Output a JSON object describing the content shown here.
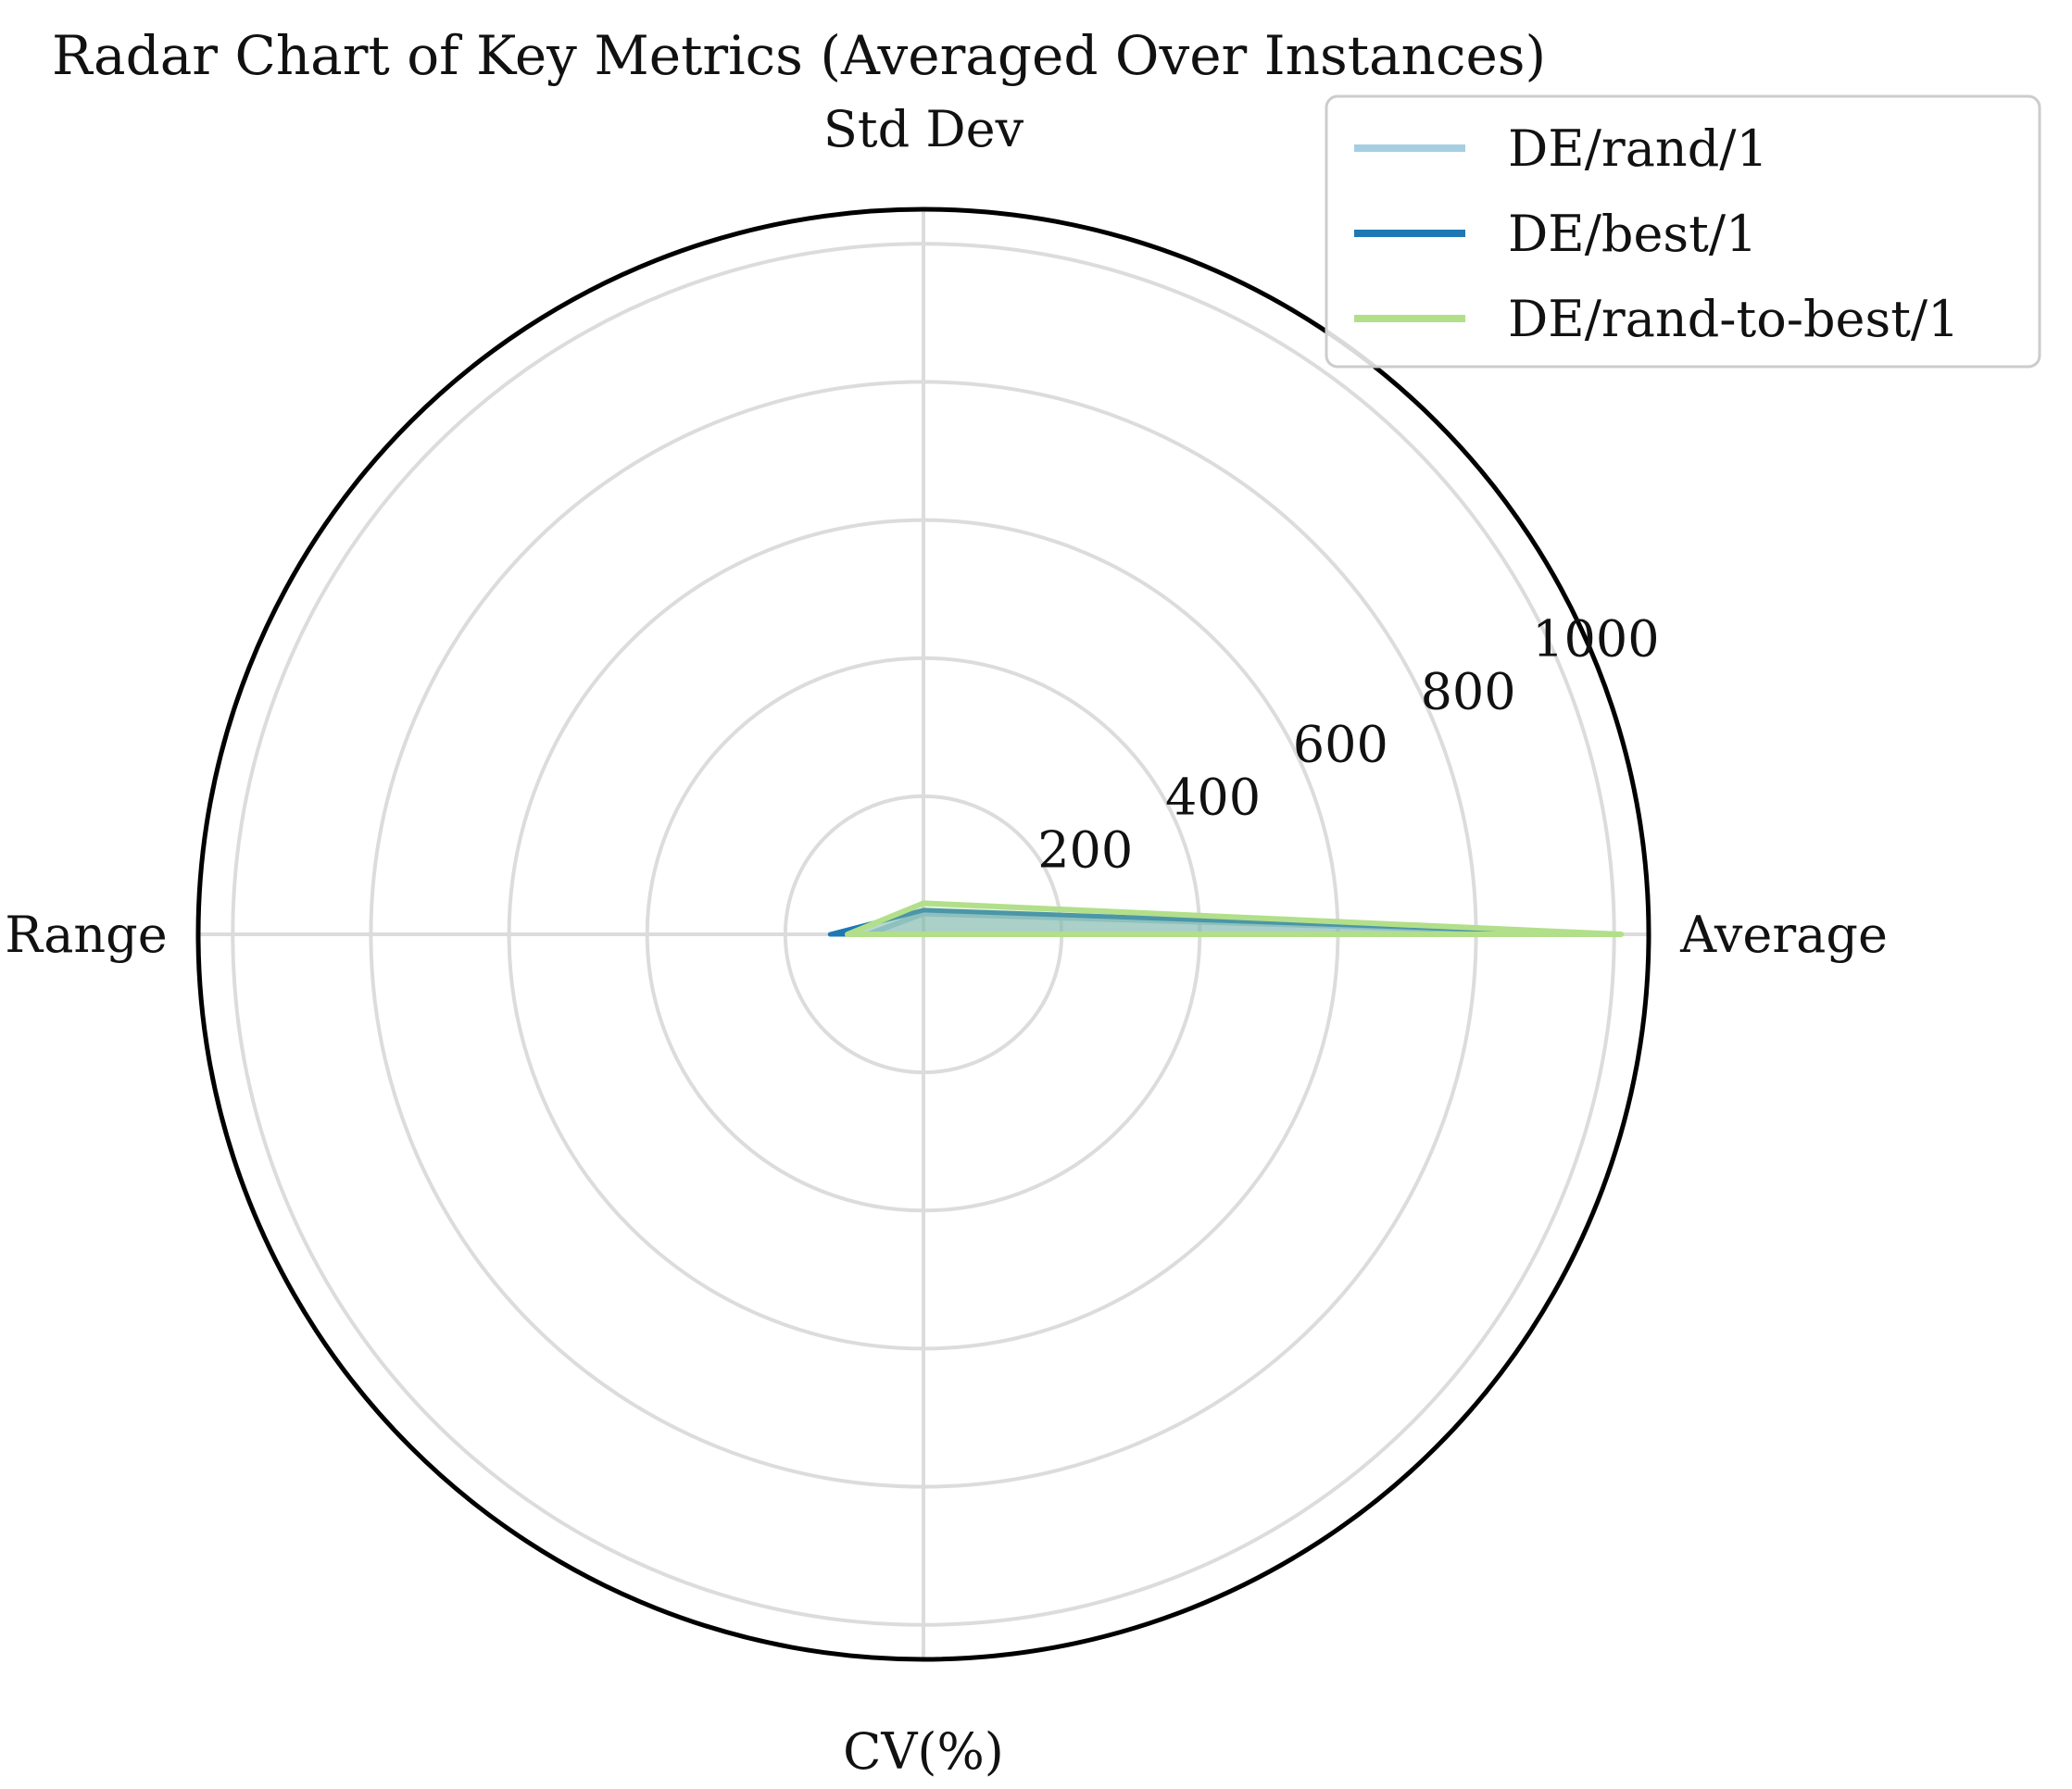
{
  "chart_data": {
    "type": "radar",
    "title": "Radar Chart of Key Metrics (Averaged Over Instances)",
    "axes": [
      "Average",
      "Std Dev",
      "Range",
      "CV(%)"
    ],
    "r_ticks": [
      "200",
      "400",
      "600",
      "800",
      "1000"
    ],
    "r_tick_values": [
      200,
      400,
      600,
      800,
      1000
    ],
    "rlim": [
      0,
      1050
    ],
    "grid": true,
    "legend_position": "top-right",
    "series": [
      {
        "name": "DE/rand/1",
        "color": "#a6cee3",
        "values": [
          1000,
          30,
          80,
          0
        ]
      },
      {
        "name": "DE/best/1",
        "color": "#1f78b4",
        "values": [
          1000,
          35,
          135,
          0
        ]
      },
      {
        "name": "DE/rand-to-best/1",
        "color": "#b2df8a",
        "values": [
          1010,
          45,
          110,
          0
        ]
      }
    ]
  }
}
